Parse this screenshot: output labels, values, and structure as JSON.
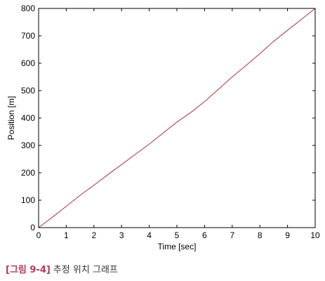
{
  "chart_data": {
    "type": "line",
    "xlabel": "Time [sec]",
    "ylabel": "Position [m]",
    "xlim": [
      0,
      10
    ],
    "ylim": [
      0,
      800
    ],
    "xticks": [
      0,
      1,
      2,
      3,
      4,
      5,
      6,
      7,
      8,
      9,
      10
    ],
    "yticks": [
      0,
      100,
      200,
      300,
      400,
      500,
      600,
      700,
      800
    ],
    "grid": false,
    "series": [
      {
        "color": "#a8324a",
        "x": [
          0,
          0.5,
          1,
          1.5,
          2,
          2.5,
          3,
          3.5,
          4,
          4.5,
          5,
          5.5,
          6,
          6.5,
          7,
          7.5,
          8,
          8.5,
          9,
          9.5,
          10
        ],
        "y": [
          0,
          38,
          78,
          118,
          155,
          193,
          230,
          268,
          305,
          345,
          385,
          420,
          460,
          505,
          550,
          592,
          635,
          680,
          720,
          760,
          800
        ]
      }
    ]
  },
  "caption": {
    "label": "[그림 9-4]",
    "text": "추정 위치 그래프"
  }
}
